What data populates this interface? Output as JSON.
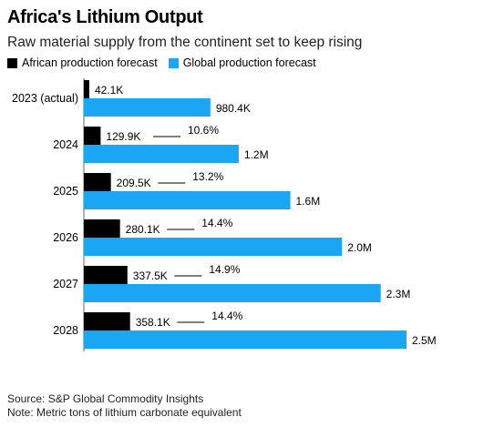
{
  "header": {
    "title": "Africa's Lithium Output",
    "subtitle": "Raw material supply from the continent set to keep rising"
  },
  "legend": [
    {
      "label": "African production forecast",
      "color": "#000000"
    },
    {
      "label": "Global production forecast",
      "color": "#1aa6f2"
    }
  ],
  "footer": {
    "source": "Source: S&P Global Commodity Insights",
    "note": "Note: Metric tons of lithium carbonate equivalent"
  },
  "chart_data": {
    "type": "bar",
    "orientation": "horizontal",
    "categories": [
      "2023 (actual)",
      "2024",
      "2025",
      "2026",
      "2027",
      "2028"
    ],
    "series": [
      {
        "name": "African production forecast",
        "color": "#000000",
        "values": [
          42100,
          129900,
          209500,
          280100,
          337500,
          358100
        ],
        "labels": [
          "42.1K",
          "129.9K",
          "209.5K",
          "280.1K",
          "337.5K",
          "358.1K"
        ]
      },
      {
        "name": "Global production forecast",
        "color": "#1aa6f2",
        "values": [
          980400,
          1200000,
          1600000,
          2000000,
          2300000,
          2500000
        ],
        "labels": [
          "980.4K",
          "1.2M",
          "1.6M",
          "2.0M",
          "2.3M",
          "2.5M"
        ]
      }
    ],
    "share_labels": [
      "",
      "10.6%",
      "13.2%",
      "14.4%",
      "14.9%",
      "14.4%"
    ],
    "xlim": [
      0,
      2500000
    ]
  }
}
